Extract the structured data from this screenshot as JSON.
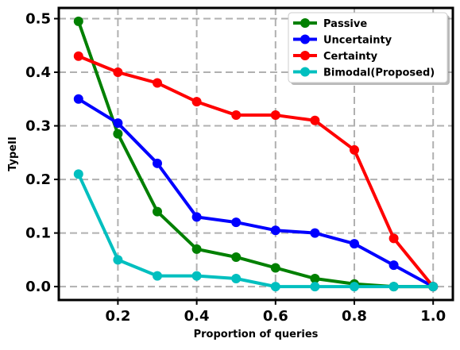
{
  "chart_data": {
    "type": "line",
    "title": "",
    "xlabel": "Proportion of queries",
    "ylabel": "TypeII",
    "xlim": [
      0.05,
      1.05
    ],
    "ylim": [
      -0.025,
      0.52
    ],
    "xticks": [
      0.2,
      0.4,
      0.6,
      0.8,
      1.0
    ],
    "xtick_labels": [
      "0.2",
      "0.4",
      "0.6",
      "0.8",
      "1.0"
    ],
    "yticks": [
      0.0,
      0.1,
      0.2,
      0.3,
      0.4,
      0.5
    ],
    "ytick_labels": [
      "0.0",
      "0.1",
      "0.2",
      "0.3",
      "0.4",
      "0.5"
    ],
    "grid": true,
    "grid_style": "dashed",
    "legend_position": "top-right",
    "x": [
      0.1,
      0.2,
      0.3,
      0.4,
      0.5,
      0.6,
      0.7,
      0.8,
      0.9,
      1.0
    ],
    "series": [
      {
        "name": "Passive",
        "color": "#008000",
        "values": [
          0.495,
          0.285,
          0.14,
          0.07,
          0.055,
          0.035,
          0.015,
          0.005,
          0.0,
          0.0
        ]
      },
      {
        "name": "Uncertainty",
        "color": "#0000ff",
        "values": [
          0.35,
          0.305,
          0.23,
          0.13,
          0.12,
          0.105,
          0.1,
          0.08,
          0.04,
          0.0
        ]
      },
      {
        "name": "Certainty",
        "color": "#ff0000",
        "values": [
          0.43,
          0.4,
          0.38,
          0.345,
          0.32,
          0.32,
          0.31,
          0.255,
          0.09,
          0.0
        ]
      },
      {
        "name": "Bimodal(Proposed)",
        "color": "#00bfbf",
        "values": [
          0.21,
          0.05,
          0.02,
          0.02,
          0.015,
          0.0,
          0.0,
          0.0,
          0.0,
          0.0
        ]
      }
    ]
  }
}
